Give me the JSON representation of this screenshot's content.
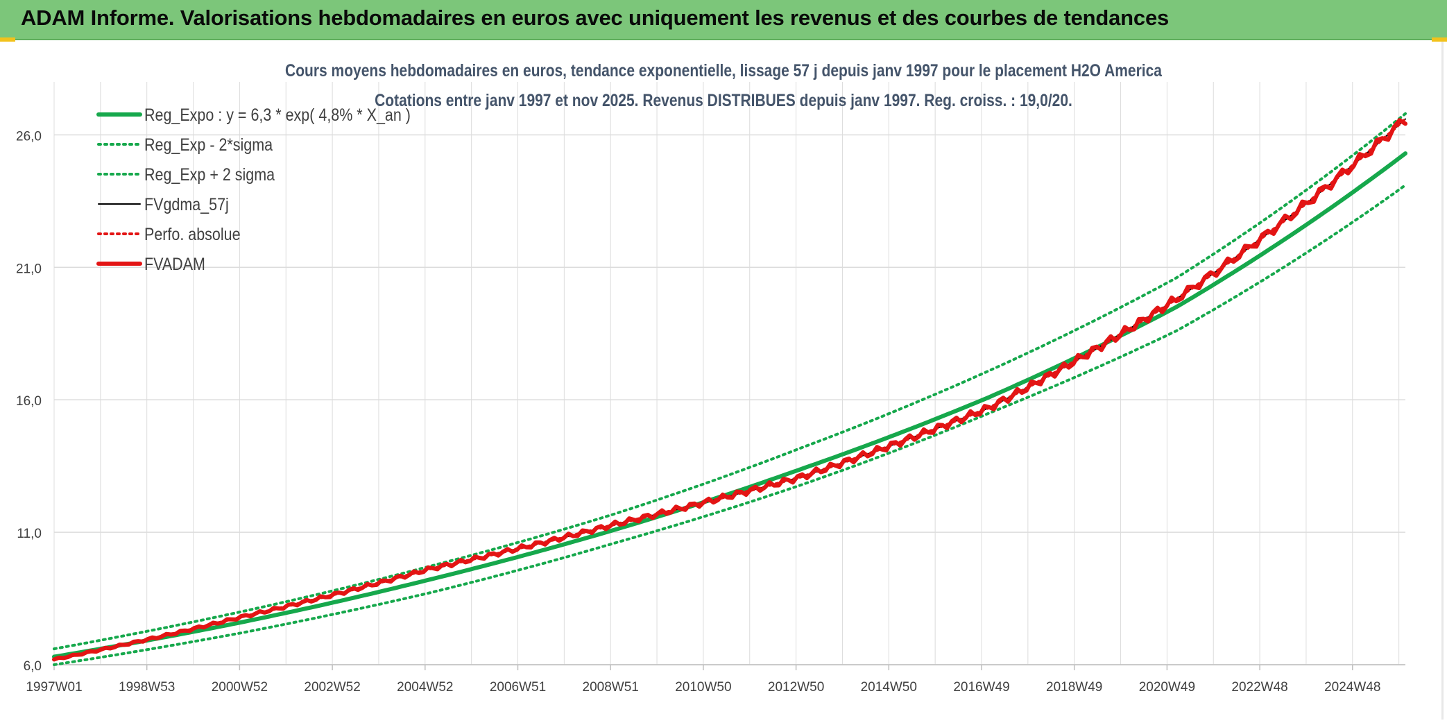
{
  "header": {
    "title": "ADAM Informe. Valorisations hebdomadaires en euros avec uniquement les revenus et des courbes de tendances"
  },
  "colors": {
    "banner": "#7cc67a",
    "green": "#16a84c",
    "red": "#e31414",
    "black": "#000000",
    "grid": "#dcdcdc",
    "title_text": "#44546a"
  },
  "chart_data": {
    "type": "line",
    "title": "Cours moyens hebdomadaires en euros, tendance exponentielle, lissage 57 j depuis janv 1997 pour le placement H2O America",
    "subtitle": "Cotations entre janv 1997 et nov 2025. Revenus DISTRIBUES depuis janv 1997. Reg. croiss. : 19,0/20.",
    "x_ticks": [
      "1997W01",
      "1998W53",
      "2000W52",
      "2002W52",
      "2004W52",
      "2006W51",
      "2008W51",
      "2010W50",
      "2012W50",
      "2014W50",
      "2016W49",
      "2018W49",
      "2020W49",
      "2022W48",
      "2024W48"
    ],
    "x_range_years": [
      1997.0,
      2025.9
    ],
    "ylim": [
      6.0,
      28.0
    ],
    "y_ticks": [
      "6,0",
      "11,0",
      "16,0",
      "21,0",
      "26,0"
    ],
    "y_tick_values": [
      6,
      11,
      16,
      21,
      26
    ],
    "grid": true,
    "legend_placement": "top-left",
    "series": [
      {
        "name": "Reg_Expo : y = 6,3 * exp( 4,8% *  X_an )",
        "color": "#16a84c",
        "style": "solid-thick",
        "x": [
          1997,
          2001,
          2005,
          2009,
          2013,
          2017,
          2021,
          2025.9
        ],
        "y": [
          6.3,
          7.6,
          9.2,
          11.1,
          13.4,
          16.1,
          19.5,
          25.3
        ]
      },
      {
        "name": "Reg_Exp - 2*sigma",
        "color": "#16a84c",
        "style": "dotted",
        "x": [
          1997,
          2001,
          2005,
          2009,
          2013,
          2017,
          2021,
          2025.9
        ],
        "y": [
          6.0,
          7.2,
          8.7,
          10.6,
          12.8,
          15.5,
          18.6,
          24.1
        ]
      },
      {
        "name": "Reg_Exp + 2 sigma",
        "color": "#16a84c",
        "style": "dotted",
        "x": [
          1997,
          2001,
          2005,
          2009,
          2013,
          2017,
          2021,
          2025.9
        ],
        "y": [
          6.6,
          8.0,
          9.7,
          11.7,
          14.2,
          17.1,
          20.6,
          26.8
        ]
      },
      {
        "name": "FVgdma_57j",
        "color": "#000000",
        "style": "solid",
        "x": [
          1997,
          2001,
          2005,
          2009,
          2013,
          2017,
          2021,
          2025.9
        ],
        "y": [
          6.2,
          7.8,
          9.6,
          11.3,
          13.1,
          15.7,
          19.8,
          26.6
        ]
      },
      {
        "name": "Perfo. absolue",
        "color": "#e31414",
        "style": "dotted",
        "x": [
          1997,
          2001,
          2005,
          2009,
          2013,
          2017,
          2021,
          2025.9
        ],
        "y": [
          6.2,
          7.8,
          9.6,
          11.3,
          13.1,
          15.7,
          19.8,
          26.6
        ]
      },
      {
        "name": "FVADAM",
        "color": "#e31414",
        "style": "solid-thick-stepped",
        "x": [
          1997,
          2001,
          2005,
          2009,
          2013,
          2017,
          2021,
          2025.9
        ],
        "y": [
          6.2,
          7.8,
          9.6,
          11.3,
          13.1,
          15.7,
          19.8,
          26.6
        ]
      }
    ]
  }
}
